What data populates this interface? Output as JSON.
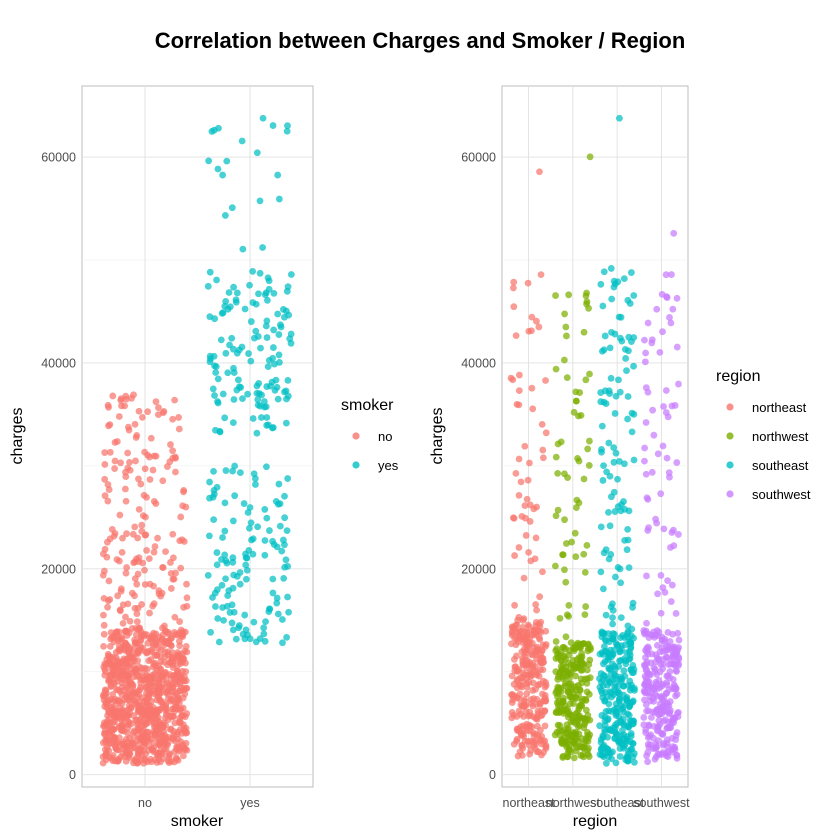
{
  "title": "Correlation between Charges and Smoker / Region",
  "chart_data": [
    {
      "type": "scatter",
      "jitter": true,
      "xlabel": "smoker",
      "ylabel": "charges",
      "categories": [
        "no",
        "yes"
      ],
      "ylim": [
        -1200,
        66900
      ],
      "yticks": [
        0,
        20000,
        40000,
        60000
      ],
      "grid": true,
      "legend": {
        "title": "smoker",
        "position": "right",
        "entries": [
          "no",
          "yes"
        ]
      },
      "colors": {
        "no": "#F8766D",
        "yes": "#00BFC4"
      },
      "series": [
        {
          "name": "no",
          "category": "no",
          "count": 1064,
          "bulk": {
            "min": 1100,
            "max": 14000,
            "share": 0.84
          },
          "upper": {
            "min": 14000,
            "max": 37000,
            "share": 0.16
          },
          "max": 36900
        },
        {
          "name": "yes",
          "category": "yes",
          "count": 274,
          "ranges": [
            {
              "min": 12800,
              "max": 30000,
              "share": 0.47
            },
            {
              "min": 33000,
              "max": 49000,
              "share": 0.48
            },
            {
              "min": 51000,
              "max": 63800,
              "share": 0.05
            }
          ],
          "max": 63770
        }
      ]
    },
    {
      "type": "scatter",
      "jitter": true,
      "xlabel": "region",
      "ylabel": "charges",
      "categories": [
        "northeast",
        "northwest",
        "southeast",
        "southwest"
      ],
      "ylim": [
        -1200,
        66900
      ],
      "yticks": [
        0,
        20000,
        40000,
        60000
      ],
      "grid": true,
      "legend": {
        "title": "region",
        "position": "right",
        "entries": [
          "northeast",
          "northwest",
          "southeast",
          "southwest"
        ]
      },
      "colors": {
        "northeast": "#F8766D",
        "northwest": "#7CAE00",
        "southeast": "#00BFC4",
        "southwest": "#C77CFF"
      },
      "series": [
        {
          "name": "northeast",
          "category": "northeast",
          "count": 324,
          "bulk": {
            "min": 1700,
            "max": 15000,
            "share": 0.8
          },
          "upper": {
            "min": 15000,
            "max": 49000,
            "share": 0.2
          },
          "max": 58570
        },
        {
          "name": "northwest",
          "category": "northwest",
          "count": 325,
          "bulk": {
            "min": 1600,
            "max": 13000,
            "share": 0.81
          },
          "upper": {
            "min": 13000,
            "max": 48000,
            "share": 0.19
          },
          "max": 60020
        },
        {
          "name": "southeast",
          "category": "southeast",
          "count": 364,
          "bulk": {
            "min": 1100,
            "max": 14000,
            "share": 0.76
          },
          "upper": {
            "min": 14000,
            "max": 49500,
            "share": 0.24
          },
          "max": 63770
        },
        {
          "name": "southwest",
          "category": "southwest",
          "count": 325,
          "bulk": {
            "min": 1200,
            "max": 14000,
            "share": 0.82
          },
          "upper": {
            "min": 14000,
            "max": 49000,
            "share": 0.18
          },
          "max": 52590
        }
      ]
    }
  ]
}
